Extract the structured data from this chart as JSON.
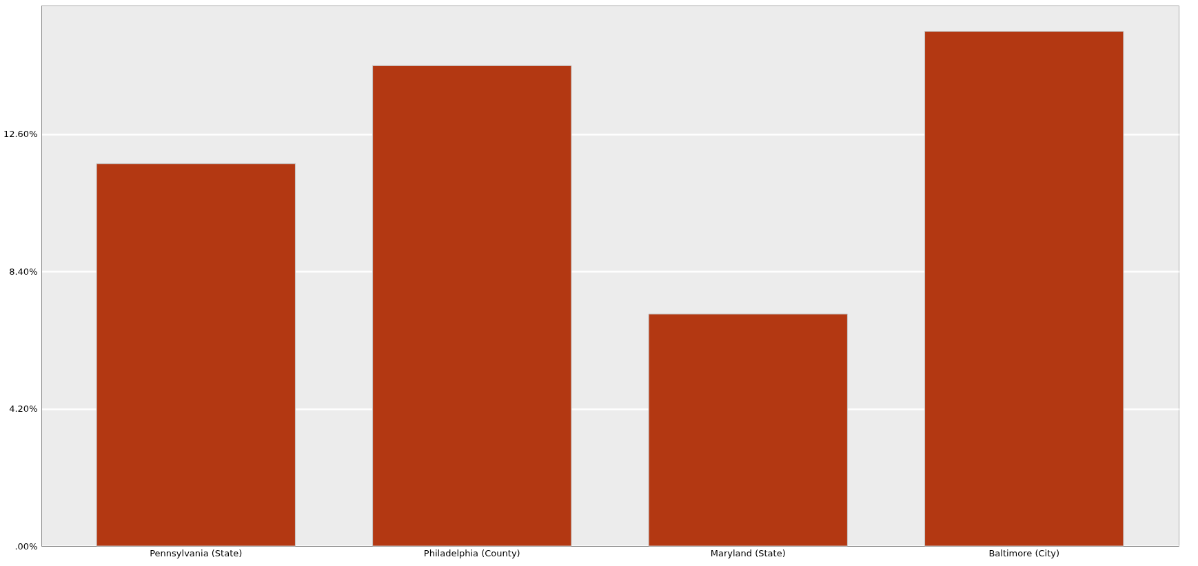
{
  "chart_data": {
    "type": "bar",
    "categories": [
      "Pennsylvania (State)",
      "Philadelphia (County)",
      "Maryland (State)",
      "Baltimore (City)"
    ],
    "values": [
      11.7,
      14.7,
      7.1,
      15.75
    ],
    "color": "#b33812",
    "ylim": [
      0,
      16.54
    ],
    "yticks": [
      {
        "value": 0,
        "label": ".00%"
      },
      {
        "value": 4.2,
        "label": "4.20%"
      },
      {
        "value": 8.4,
        "label": "8.40%"
      },
      {
        "value": 12.6,
        "label": "12.60%"
      }
    ],
    "grid": "y"
  }
}
